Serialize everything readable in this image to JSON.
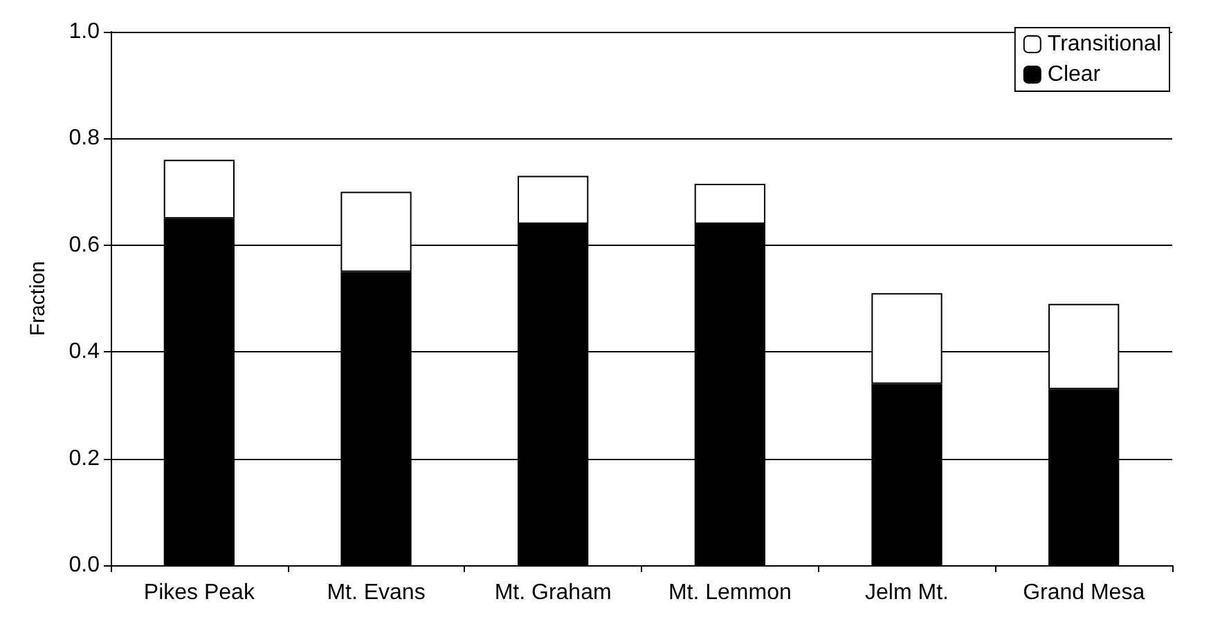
{
  "chart_data": {
    "type": "bar",
    "stacked": true,
    "ylabel": "Fraction",
    "categories": [
      "Pikes Peak",
      "Mt. Evans",
      "Mt. Graham",
      "Mt. Lemmon",
      "Jelm Mt.",
      "Grand Mesa"
    ],
    "series": [
      {
        "name": "Clear",
        "color": "#000000",
        "values": [
          0.65,
          0.55,
          0.64,
          0.64,
          0.34,
          0.33
        ]
      },
      {
        "name": "Transitional",
        "color": "#ffffff",
        "values": [
          0.11,
          0.15,
          0.09,
          0.075,
          0.17,
          0.16
        ]
      }
    ],
    "ylim": [
      0,
      1
    ],
    "yticks": [
      {
        "value": 0,
        "label": "0.0"
      },
      0.2,
      0.4,
      0.6,
      0.8,
      {
        "value": 1,
        "label": "1.0"
      }
    ],
    "grid": "y",
    "legend": "top right"
  }
}
